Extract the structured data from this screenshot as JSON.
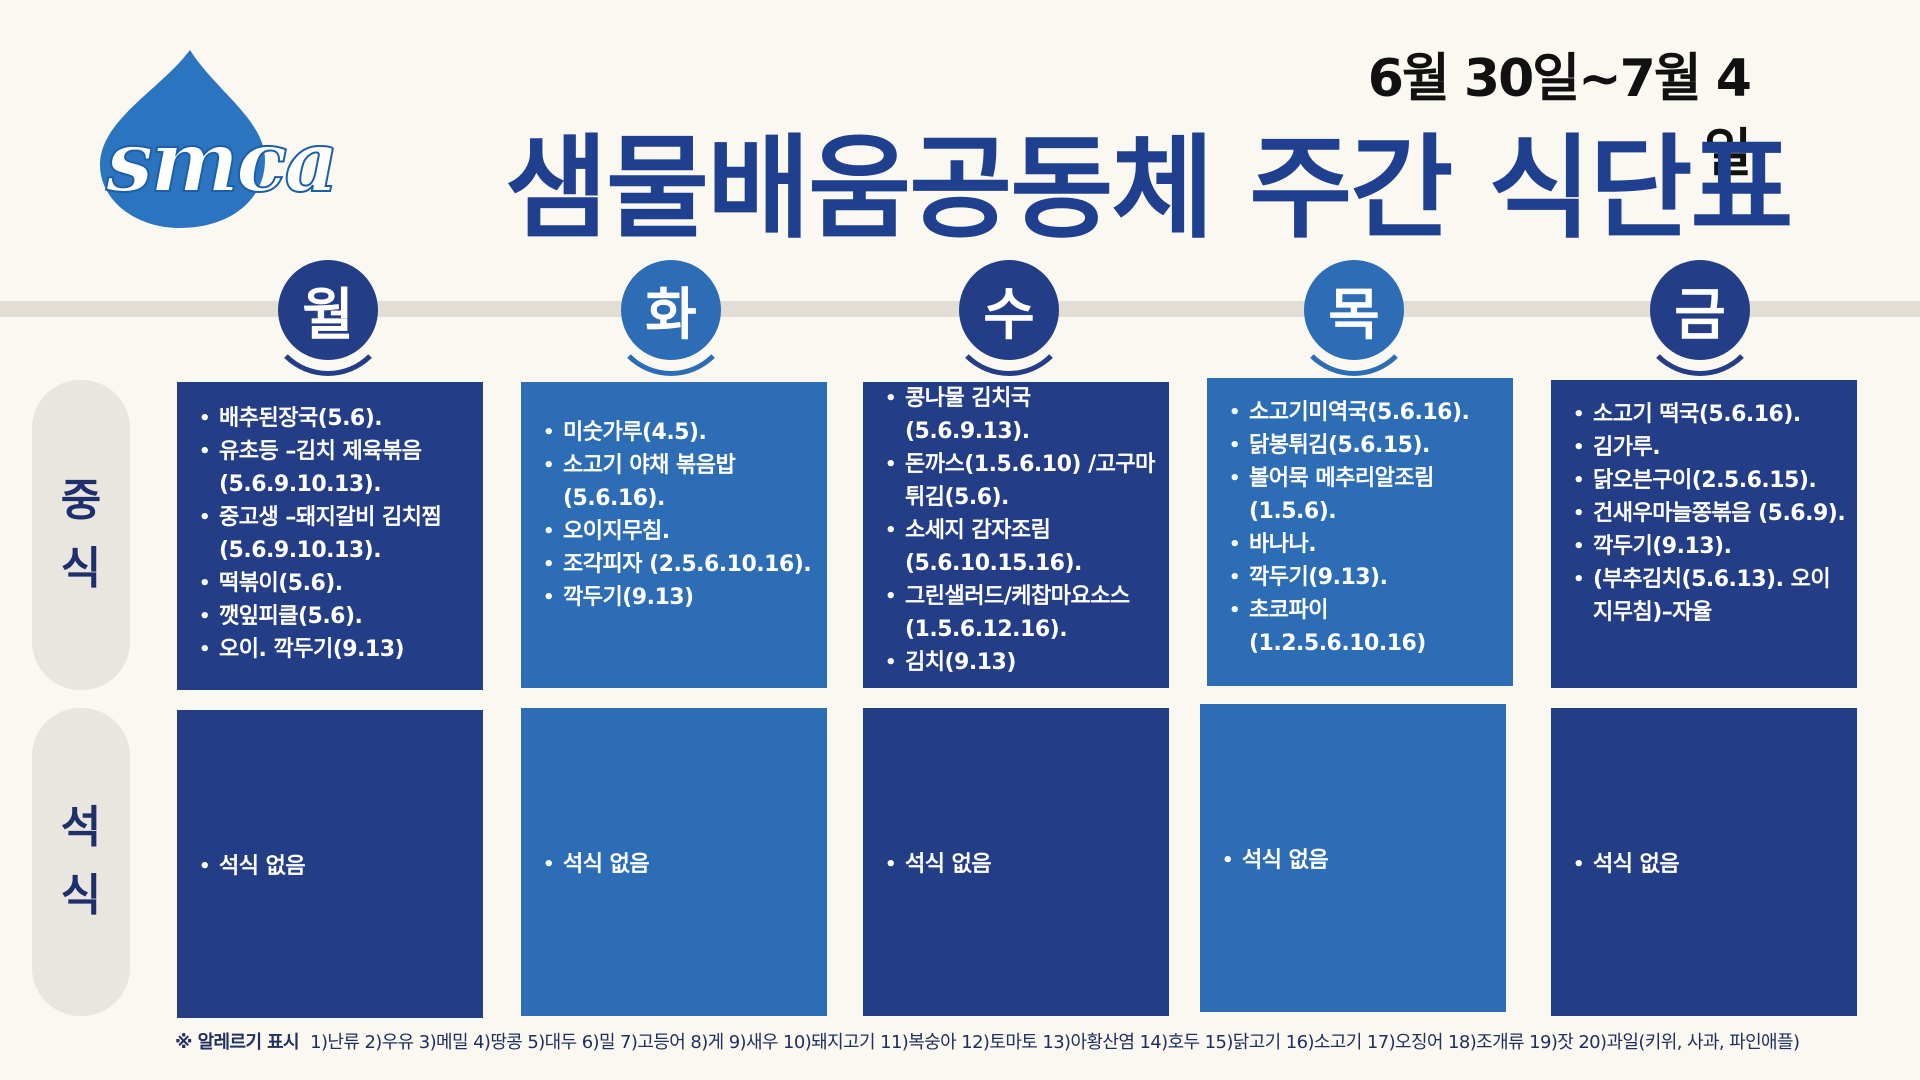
{
  "header": {
    "logo_text": "smca",
    "date_range": "6월 30일~7월 4일",
    "title": "샘물배움공동체 주간 식단표"
  },
  "rows": {
    "lunch_chars": [
      "중",
      "식"
    ],
    "dinner_chars": [
      "석",
      "식"
    ]
  },
  "days": [
    {
      "label": "월",
      "lunch": [
        "배추된장국(5.6).",
        "유초등 –김치 제육볶음(5.6.9.10.13).",
        "중고생 –돼지갈비 김치찜(5.6.9.10.13).",
        "떡볶이(5.6).",
        "깻잎피클(5.6).",
        "오이. 깍두기(9.13)"
      ],
      "dinner": [
        "석식 없음"
      ]
    },
    {
      "label": "화",
      "lunch": [
        "미숫가루(4.5).",
        "소고기 야채 볶음밥 (5.6.16).",
        "오이지무침.",
        "조각피자 (2.5.6.10.16).",
        "깍두기(9.13)"
      ],
      "dinner": [
        "석식 없음"
      ]
    },
    {
      "label": "수",
      "lunch": [
        "콩나물 김치국 (5.6.9.13).",
        "돈까스(1.5.6.10) /고구마튀김(5.6).",
        "소세지 감자조림 (5.6.10.15.16).",
        "그린샐러드/케찹마요소스(1.5.6.12.16).",
        "김치(9.13)"
      ],
      "dinner": [
        "석식 없음"
      ]
    },
    {
      "label": "목",
      "lunch": [
        "소고기미역국(5.6.16).",
        "닭봉튀김(5.6.15).",
        "볼어묵 메추리알조림 (1.5.6).",
        "바나나.",
        "깍두기(9.13).",
        "초코파이 (1.2.5.6.10.16)"
      ],
      "dinner": [
        "석식 없음"
      ]
    },
    {
      "label": "금",
      "lunch": [
        "소고기 떡국(5.6.16).",
        "김가루.",
        "닭오븐구이(2.5.6.15).",
        "건새우마늘쫑볶음 (5.6.9).",
        "깍두기(9.13).",
        "(부추김치(5.6.13). 오이지무침)–자율"
      ],
      "dinner": [
        "석식 없음"
      ]
    }
  ],
  "footer": {
    "label": "※ 알레르기 표시",
    "text": "1)난류 2)우유 3)메밀 4)땅콩 5)대두 6)밀 7)고등어 8)게 9)새우 10)돼지고기 11)복숭아 12)토마토 13)아황산염 14)호두 15)닭고기 16)소고기 17)오징어 18)조개류 19)잣 20)과일(키위, 사과, 파인애플)"
  },
  "colors": {
    "dark_blue": "#233d86",
    "light_blue": "#2c6db6",
    "title_blue": "#1f3f8f",
    "background": "#fbf8f1"
  }
}
